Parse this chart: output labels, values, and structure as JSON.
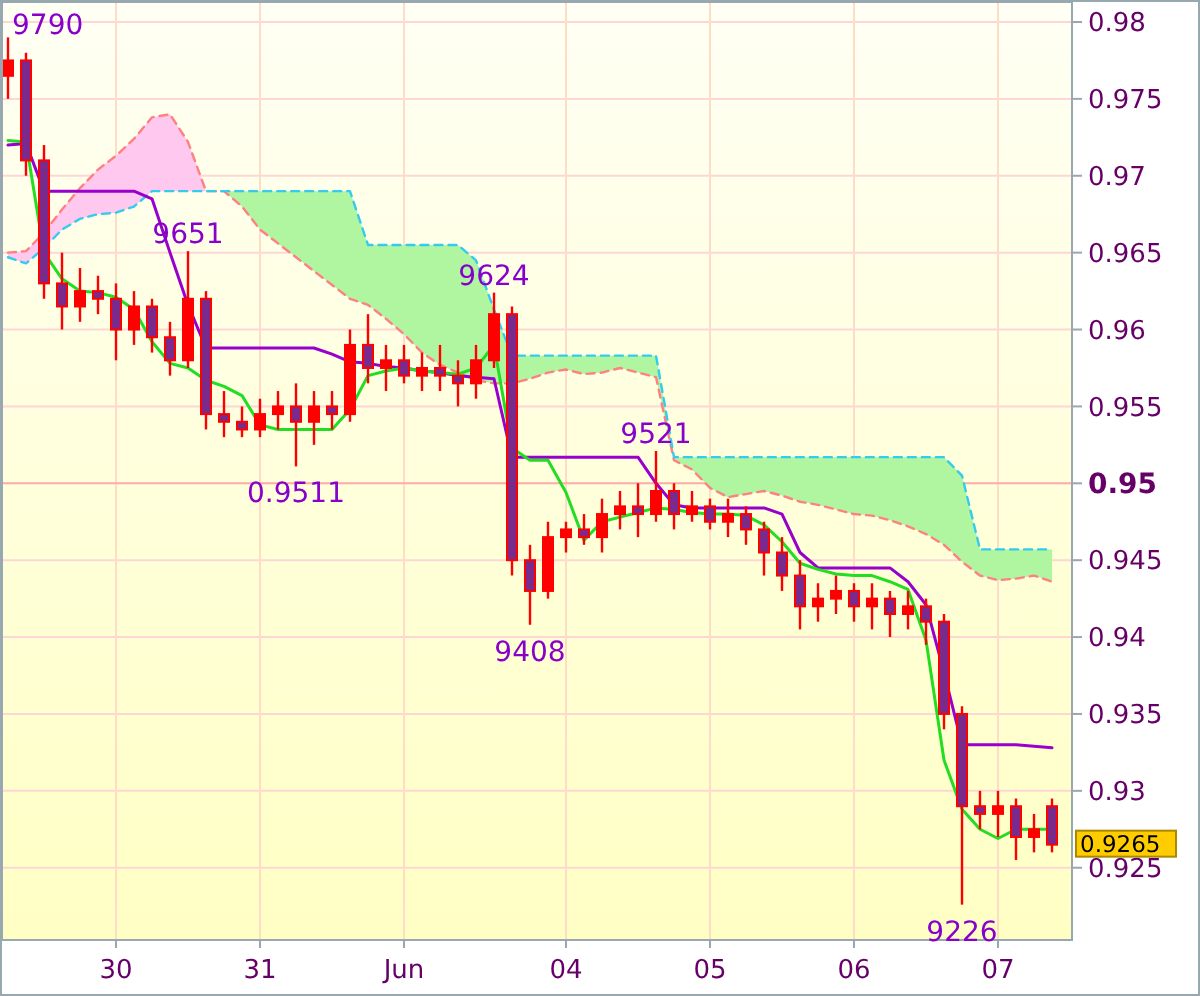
{
  "chart_data": {
    "type": "candlestick",
    "ylim": [
      0.9203,
      0.9813
    ],
    "categories": [
      null,
      null,
      null,
      null,
      null,
      null,
      "30",
      null,
      null,
      null,
      null,
      null,
      null,
      null,
      "31",
      null,
      null,
      null,
      null,
      null,
      null,
      null,
      "Jun",
      null,
      null,
      null,
      null,
      null,
      null,
      null,
      null,
      "04",
      null,
      null,
      null,
      null,
      null,
      null,
      null,
      "05",
      null,
      null,
      null,
      null,
      null,
      null,
      null,
      "06",
      null,
      null,
      null,
      null,
      null,
      null,
      null,
      "07",
      null,
      null,
      null
    ],
    "yticks": [
      0.925,
      0.93,
      0.935,
      0.94,
      0.945,
      0.955,
      0.96,
      0.965,
      0.97,
      0.975,
      0.98
    ],
    "grid": true,
    "ref_lines": [
      {
        "axis": "y",
        "value": 0.95,
        "label": "0.95",
        "color": "#ffaaaa"
      }
    ],
    "series": [
      {
        "type": "line",
        "color": "#ff8080",
        "line_style": "dashed",
        "values": [
          0.965,
          0.9651,
          0.9663,
          0.9678,
          0.9692,
          0.9704,
          0.9713,
          0.9724,
          0.9738,
          0.974,
          0.9722,
          0.969,
          0.969,
          0.968,
          0.9665,
          0.9656,
          0.9647,
          0.9638,
          0.9629,
          0.962,
          0.9616,
          0.9607,
          0.9597,
          0.9585,
          0.9577,
          0.9572,
          0.9567,
          0.9565,
          0.9565,
          0.9568,
          0.9572,
          0.9574,
          0.9571,
          0.9572,
          0.9575,
          0.9572,
          0.9569,
          0.9515,
          0.9509,
          0.9497,
          0.9491,
          0.9493,
          0.9495,
          0.9492,
          0.9488,
          0.9486,
          0.9483,
          0.948,
          0.9479,
          0.9476,
          0.9472,
          0.9467,
          0.946,
          0.9449,
          0.944,
          0.9437,
          0.9438,
          0.944,
          0.9436
        ]
      },
      {
        "type": "line",
        "color": "#33ccee",
        "line_style": "dashed",
        "values": [
          0.9647,
          0.9643,
          0.9653,
          0.9665,
          0.9672,
          0.9675,
          0.9676,
          0.968,
          0.969,
          0.969,
          0.969,
          0.969,
          0.969,
          0.969,
          0.969,
          0.969,
          0.969,
          0.969,
          0.969,
          0.969,
          0.9655,
          0.9655,
          0.9655,
          0.9655,
          0.9655,
          0.9655,
          0.9645,
          0.9613,
          0.9583,
          0.9583,
          0.9583,
          0.9583,
          0.9583,
          0.9583,
          0.9583,
          0.9583,
          0.9583,
          0.9517,
          0.9517,
          0.9517,
          0.9517,
          0.9517,
          0.9517,
          0.9517,
          0.9517,
          0.9517,
          0.9517,
          0.9517,
          0.9517,
          0.9517,
          0.9517,
          0.9517,
          0.9517,
          0.9505,
          0.9457,
          0.9457,
          0.9457,
          0.9457,
          0.9457
        ]
      },
      {
        "type": "line",
        "color": "#9900cc",
        "values": [
          0.972,
          0.9721,
          0.969,
          0.969,
          0.969,
          0.969,
          0.969,
          0.969,
          0.9685,
          0.965,
          0.9616,
          0.9588,
          0.9588,
          0.9588,
          0.9588,
          0.9588,
          0.9588,
          0.9588,
          0.9584,
          0.9579,
          0.9578,
          0.9576,
          0.9575,
          0.9573,
          0.9572,
          0.957,
          0.9569,
          0.9568,
          0.9517,
          0.9517,
          0.9517,
          0.9517,
          0.9517,
          0.9517,
          0.9517,
          0.9517,
          0.95,
          0.9486,
          0.9484,
          0.9484,
          0.9484,
          0.9484,
          0.9484,
          0.948,
          0.9455,
          0.9445,
          0.9445,
          0.9445,
          0.9445,
          0.9445,
          0.9436,
          0.9421,
          0.9377,
          0.933,
          0.933,
          0.933,
          0.933,
          0.9329,
          0.9328
        ]
      },
      {
        "type": "line",
        "color": "#22dd22",
        "values": [
          0.9723,
          0.9722,
          0.965,
          0.9633,
          0.9625,
          0.9624,
          0.9621,
          0.9613,
          0.9592,
          0.9578,
          0.9575,
          0.9567,
          0.9563,
          0.9557,
          0.9538,
          0.9535,
          0.9535,
          0.9535,
          0.9535,
          0.9548,
          0.957,
          0.9573,
          0.9575,
          0.9573,
          0.9572,
          0.9571,
          0.9575,
          0.959,
          0.9523,
          0.9515,
          0.9515,
          0.9494,
          0.9463,
          0.9475,
          0.9478,
          0.9481,
          0.9484,
          0.9483,
          0.9481,
          0.948,
          0.948,
          0.9479,
          0.9473,
          0.9462,
          0.9448,
          0.9444,
          0.9441,
          0.944,
          0.944,
          0.9436,
          0.9431,
          0.9398,
          0.932,
          0.9288,
          0.9275,
          0.9269,
          0.9275,
          0.9275,
          0.9275
        ]
      },
      {
        "color": "#ff0000",
        "ohlc": [
          [
            0.9765,
            0.979,
            0.975,
            0.9775
          ],
          [
            0.9775,
            0.978,
            0.97,
            0.971
          ],
          [
            0.971,
            0.972,
            0.962,
            0.963
          ],
          [
            0.963,
            0.965,
            0.96,
            0.9615
          ],
          [
            0.9615,
            0.964,
            0.9605,
            0.9625
          ],
          [
            0.9625,
            0.9635,
            0.961,
            0.962
          ],
          [
            0.962,
            0.963,
            0.958,
            0.96
          ],
          [
            0.96,
            0.9625,
            0.959,
            0.9615
          ],
          [
            0.9615,
            0.962,
            0.9585,
            0.9595
          ],
          [
            0.9595,
            0.9605,
            0.957,
            0.958
          ],
          [
            0.958,
            0.9651,
            0.9575,
            0.962
          ],
          [
            0.962,
            0.9625,
            0.9535,
            0.9545
          ],
          [
            0.9545,
            0.956,
            0.953,
            0.954
          ],
          [
            0.954,
            0.955,
            0.953,
            0.9535
          ],
          [
            0.9535,
            0.9555,
            0.953,
            0.9545
          ],
          [
            0.9545,
            0.956,
            0.9535,
            0.955
          ],
          [
            0.955,
            0.9565,
            0.9511,
            0.954
          ],
          [
            0.954,
            0.956,
            0.9525,
            0.955
          ],
          [
            0.955,
            0.956,
            0.9535,
            0.9545
          ],
          [
            0.9545,
            0.96,
            0.954,
            0.959
          ],
          [
            0.959,
            0.961,
            0.9565,
            0.9575
          ],
          [
            0.9575,
            0.959,
            0.956,
            0.958
          ],
          [
            0.958,
            0.959,
            0.9565,
            0.957
          ],
          [
            0.957,
            0.9585,
            0.956,
            0.9575
          ],
          [
            0.9575,
            0.959,
            0.956,
            0.957
          ],
          [
            0.957,
            0.958,
            0.955,
            0.9565
          ],
          [
            0.9565,
            0.959,
            0.9555,
            0.958
          ],
          [
            0.958,
            0.9624,
            0.9575,
            0.961
          ],
          [
            0.961,
            0.9615,
            0.944,
            0.945
          ],
          [
            0.945,
            0.946,
            0.9408,
            0.943
          ],
          [
            0.943,
            0.9475,
            0.9425,
            0.9465
          ],
          [
            0.9465,
            0.9475,
            0.9455,
            0.947
          ],
          [
            0.947,
            0.948,
            0.946,
            0.9465
          ],
          [
            0.9465,
            0.949,
            0.9455,
            0.948
          ],
          [
            0.948,
            0.9495,
            0.947,
            0.9485
          ],
          [
            0.9485,
            0.95,
            0.9465,
            0.948
          ],
          [
            0.948,
            0.9521,
            0.9475,
            0.9495
          ],
          [
            0.9495,
            0.95,
            0.947,
            0.948
          ],
          [
            0.948,
            0.9495,
            0.9475,
            0.9485
          ],
          [
            0.9485,
            0.949,
            0.947,
            0.9475
          ],
          [
            0.9475,
            0.949,
            0.9465,
            0.948
          ],
          [
            0.948,
            0.9485,
            0.946,
            0.947
          ],
          [
            0.947,
            0.9475,
            0.944,
            0.9455
          ],
          [
            0.9455,
            0.9465,
            0.943,
            0.944
          ],
          [
            0.944,
            0.945,
            0.9405,
            0.942
          ],
          [
            0.942,
            0.9435,
            0.941,
            0.9425
          ],
          [
            0.9425,
            0.944,
            0.9415,
            0.943
          ],
          [
            0.943,
            0.9435,
            0.941,
            0.942
          ],
          [
            0.942,
            0.9435,
            0.9405,
            0.9425
          ],
          [
            0.9425,
            0.943,
            0.94,
            0.9415
          ],
          [
            0.9415,
            0.943,
            0.9405,
            0.942
          ],
          [
            0.942,
            0.9425,
            0.9395,
            0.941
          ],
          [
            0.941,
            0.9415,
            0.934,
            0.935
          ],
          [
            0.935,
            0.9355,
            0.9226,
            0.929
          ],
          [
            0.929,
            0.93,
            0.9275,
            0.9285
          ],
          [
            0.9285,
            0.93,
            0.927,
            0.929
          ],
          [
            0.929,
            0.9295,
            0.9255,
            0.927
          ],
          [
            0.927,
            0.9285,
            0.926,
            0.9275
          ],
          [
            0.929,
            0.9295,
            0.926,
            0.9265
          ]
        ]
      }
    ],
    "annotations": [
      "9790",
      {
        "text": "9651",
        "y": 0.9651
      },
      {
        "text": "9624",
        "y": 0.9624
      },
      {
        "text": "9521",
        "y": 0.9521
      },
      {
        "text": "0.9511",
        "y": 0.9511
      },
      {
        "text": "9408",
        "y": 0.9408
      },
      {
        "text": "9226",
        "y": 0.9226
      },
      "0.9265"
    ]
  }
}
